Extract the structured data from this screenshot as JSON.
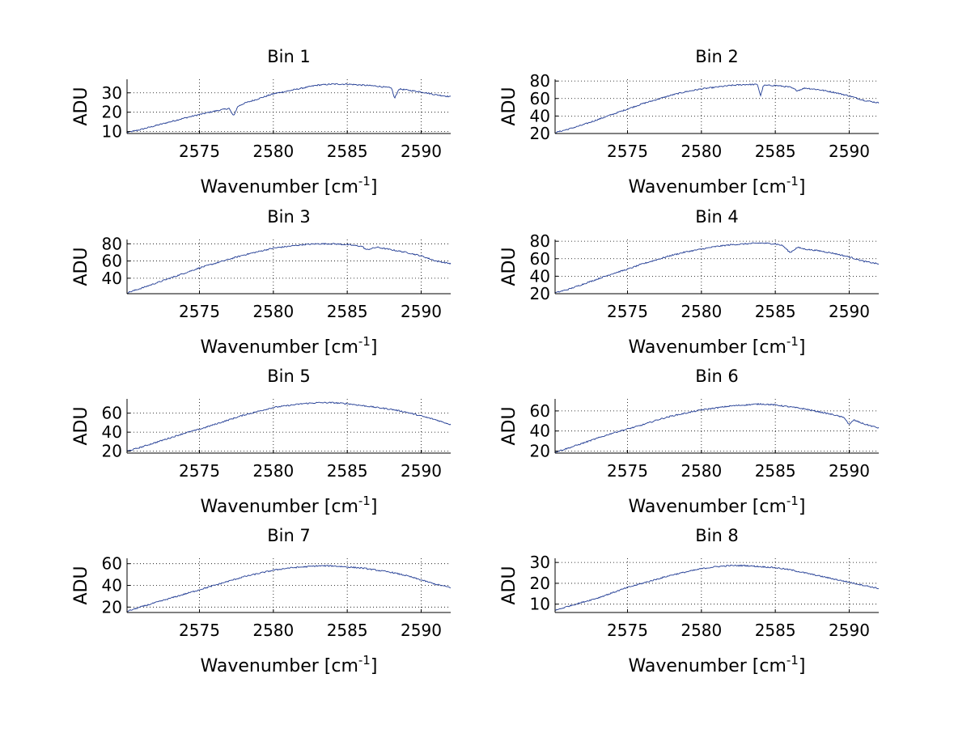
{
  "chart_data": [
    {
      "type": "line",
      "title": "Bin 1",
      "xlabel": "Wavenumber [cm",
      "xlabel_sup": "-1",
      "xlabel_suffix": "]",
      "ylabel": "ADU",
      "xlim": [
        2570.1,
        2592.0
      ],
      "ylim": [
        9,
        37
      ],
      "xticks": [
        2575,
        2580,
        2585,
        2590
      ],
      "yticks": [
        10,
        20,
        30
      ],
      "grid": true,
      "series": [
        {
          "name": "Bin 1",
          "color": "#1f3a93",
          "x": [
            2570.1,
            2571,
            2572,
            2573,
            2574,
            2575,
            2576,
            2577,
            2577.3,
            2577.6,
            2578,
            2579,
            2580,
            2581,
            2582,
            2583,
            2584,
            2585,
            2586,
            2587,
            2587.5,
            2588,
            2588.2,
            2588.5,
            2589,
            2590,
            2591,
            2592
          ],
          "y": [
            9.5,
            11.0,
            13.0,
            15.0,
            17.0,
            18.8,
            20.5,
            22.0,
            18.0,
            23.0,
            24.5,
            27.0,
            29.5,
            31.0,
            32.5,
            34.0,
            34.5,
            34.5,
            34.0,
            33.5,
            33.0,
            32.5,
            27.0,
            32.0,
            31.5,
            30.5,
            29.0,
            28.0
          ]
        }
      ]
    },
    {
      "type": "line",
      "title": "Bin 2",
      "xlabel": "Wavenumber [cm",
      "xlabel_sup": "-1",
      "xlabel_suffix": "]",
      "ylabel": "ADU",
      "xlim": [
        2570.1,
        2592.0
      ],
      "ylim": [
        20,
        82
      ],
      "xticks": [
        2575,
        2580,
        2585,
        2590
      ],
      "yticks": [
        20,
        40,
        60,
        80
      ],
      "grid": true,
      "series": [
        {
          "name": "Bin 2",
          "color": "#1f3a93",
          "x": [
            2570.1,
            2571,
            2572,
            2573,
            2574,
            2575,
            2576,
            2577,
            2578,
            2579,
            2580,
            2581,
            2582,
            2583,
            2583.8,
            2584,
            2584.2,
            2585,
            2586,
            2586.5,
            2587,
            2588,
            2589,
            2590,
            2591,
            2592
          ],
          "y": [
            21,
            25,
            30,
            36,
            42,
            48,
            54,
            59,
            64,
            68,
            71,
            73,
            75,
            76,
            76,
            63,
            75,
            75,
            73,
            69,
            72,
            70,
            67,
            63,
            58,
            55
          ]
        }
      ]
    },
    {
      "type": "line",
      "title": "Bin 3",
      "xlabel": "Wavenumber [cm",
      "xlabel_sup": "-1",
      "xlabel_suffix": "]",
      "ylabel": "ADU",
      "xlim": [
        2570.1,
        2592.0
      ],
      "ylim": [
        22,
        85
      ],
      "xticks": [
        2575,
        2580,
        2585,
        2590
      ],
      "yticks": [
        40,
        60,
        80
      ],
      "grid": true,
      "series": [
        {
          "name": "Bin 3",
          "color": "#1f3a93",
          "x": [
            2570.1,
            2571,
            2572,
            2573,
            2574,
            2575,
            2576,
            2577,
            2578,
            2579,
            2580,
            2581,
            2582,
            2583,
            2584,
            2585,
            2586,
            2586.3,
            2587,
            2588,
            2589,
            2590,
            2591,
            2592
          ],
          "y": [
            23,
            28,
            34,
            40,
            46,
            52,
            57,
            62,
            67,
            71,
            75,
            77,
            79,
            80,
            80,
            79,
            77,
            73,
            76,
            73,
            70,
            66,
            60,
            57
          ]
        }
      ]
    },
    {
      "type": "line",
      "title": "Bin 4",
      "xlabel": "Wavenumber [cm",
      "xlabel_sup": "-1",
      "xlabel_suffix": "]",
      "ylabel": "ADU",
      "xlim": [
        2570.1,
        2592.0
      ],
      "ylim": [
        20,
        82
      ],
      "xticks": [
        2575,
        2580,
        2585,
        2590
      ],
      "yticks": [
        20,
        40,
        60,
        80
      ],
      "grid": true,
      "series": [
        {
          "name": "Bin 4",
          "color": "#1f3a93",
          "x": [
            2570.1,
            2571,
            2572,
            2573,
            2574,
            2575,
            2576,
            2577,
            2578,
            2579,
            2580,
            2581,
            2582,
            2583,
            2584,
            2585,
            2585.5,
            2586,
            2586.5,
            2587,
            2588,
            2589,
            2590,
            2591,
            2592
          ],
          "y": [
            21,
            25,
            31,
            37,
            43,
            48,
            54,
            59,
            64,
            68,
            71,
            74,
            76,
            77,
            78,
            77,
            75,
            67,
            73,
            71,
            69,
            66,
            62,
            57,
            54
          ]
        }
      ]
    },
    {
      "type": "line",
      "title": "Bin 5",
      "xlabel": "Wavenumber [cm",
      "xlabel_sup": "-1",
      "xlabel_suffix": "]",
      "ylabel": "ADU",
      "xlim": [
        2570.1,
        2592.0
      ],
      "ylim": [
        18,
        75
      ],
      "xticks": [
        2575,
        2580,
        2585,
        2590
      ],
      "yticks": [
        20,
        40,
        60
      ],
      "grid": true,
      "series": [
        {
          "name": "Bin 5",
          "color": "#1f3a93",
          "x": [
            2570.1,
            2571,
            2572,
            2573,
            2574,
            2575,
            2576,
            2577,
            2578,
            2579,
            2580,
            2581,
            2582,
            2583,
            2584,
            2585,
            2586,
            2587,
            2588,
            2589,
            2590,
            2591,
            2592
          ],
          "y": [
            20,
            24,
            29,
            34,
            39,
            43,
            48,
            53,
            58,
            62,
            66,
            68,
            70,
            71,
            71,
            70,
            68,
            66,
            64,
            61,
            57,
            53,
            48
          ]
        }
      ]
    },
    {
      "type": "line",
      "title": "Bin 6",
      "xlabel": "Wavenumber [cm",
      "xlabel_sup": "-1",
      "xlabel_suffix": "]",
      "ylabel": "ADU",
      "xlim": [
        2570.1,
        2592.0
      ],
      "ylim": [
        18,
        72
      ],
      "xticks": [
        2575,
        2580,
        2585,
        2590
      ],
      "yticks": [
        20,
        40,
        60
      ],
      "grid": true,
      "series": [
        {
          "name": "Bin 6",
          "color": "#1f3a93",
          "x": [
            2570.1,
            2571,
            2572,
            2573,
            2574,
            2575,
            2576,
            2577,
            2578,
            2579,
            2580,
            2581,
            2582,
            2583,
            2584,
            2585,
            2586,
            2587,
            2588,
            2589,
            2589.7,
            2590,
            2590.3,
            2591,
            2592
          ],
          "y": [
            19,
            23,
            28,
            33,
            38,
            42,
            46,
            51,
            55,
            58,
            61,
            63,
            65,
            66,
            67,
            66,
            64,
            62,
            59,
            56,
            53,
            46,
            51,
            47,
            43
          ]
        }
      ]
    },
    {
      "type": "line",
      "title": "Bin 7",
      "xlabel": "Wavenumber [cm",
      "xlabel_sup": "-1",
      "xlabel_suffix": "]",
      "ylabel": "ADU",
      "xlim": [
        2570.1,
        2592.0
      ],
      "ylim": [
        15,
        65
      ],
      "xticks": [
        2575,
        2580,
        2585,
        2590
      ],
      "yticks": [
        20,
        40,
        60
      ],
      "grid": true,
      "series": [
        {
          "name": "Bin 7",
          "color": "#1f3a93",
          "x": [
            2570.1,
            2571,
            2572,
            2573,
            2574,
            2575,
            2576,
            2577,
            2578,
            2579,
            2580,
            2581,
            2582,
            2583,
            2584,
            2585,
            2586,
            2587,
            2588,
            2589,
            2590,
            2591,
            2592
          ],
          "y": [
            16,
            20,
            24,
            28,
            32,
            36,
            40,
            44,
            48,
            51,
            54,
            56,
            57,
            58,
            58,
            57,
            56,
            54,
            52,
            49,
            45,
            41,
            38
          ]
        }
      ]
    },
    {
      "type": "line",
      "title": "Bin 8",
      "xlabel": "Wavenumber [cm",
      "xlabel_sup": "-1",
      "xlabel_suffix": "]",
      "ylabel": "ADU",
      "xlim": [
        2570.1,
        2592.0
      ],
      "ylim": [
        6,
        32
      ],
      "xticks": [
        2575,
        2580,
        2585,
        2590
      ],
      "yticks": [
        10,
        20,
        30
      ],
      "grid": true,
      "series": [
        {
          "name": "Bin 8",
          "color": "#1f3a93",
          "x": [
            2570.1,
            2571,
            2572,
            2573,
            2574,
            2575,
            2576,
            2577,
            2578,
            2579,
            2580,
            2581,
            2582,
            2583,
            2584,
            2585,
            2586,
            2587,
            2588,
            2589,
            2590,
            2591,
            2592
          ],
          "y": [
            7,
            9,
            11,
            13,
            15.5,
            18,
            20,
            22,
            24,
            25.5,
            27,
            28,
            28.5,
            28.5,
            28,
            27.5,
            26.5,
            25,
            23.5,
            22,
            20.5,
            19,
            17.5
          ]
        }
      ]
    }
  ]
}
